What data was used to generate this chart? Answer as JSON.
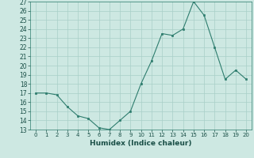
{
  "x": [
    0,
    1,
    2,
    3,
    4,
    5,
    6,
    7,
    8,
    9,
    10,
    11,
    12,
    13,
    14,
    15,
    16,
    17,
    18,
    19,
    20
  ],
  "y": [
    17.0,
    17.0,
    16.8,
    15.5,
    14.5,
    14.2,
    13.2,
    13.0,
    14.0,
    15.0,
    18.0,
    20.5,
    23.5,
    23.3,
    24.0,
    27.0,
    25.5,
    22.0,
    18.5,
    19.5,
    18.5
  ],
  "xlabel": "Humidex (Indice chaleur)",
  "ylim": [
    13,
    27
  ],
  "xlim": [
    -0.5,
    20.5
  ],
  "yticks": [
    13,
    14,
    15,
    16,
    17,
    18,
    19,
    20,
    21,
    22,
    23,
    24,
    25,
    26,
    27
  ],
  "xticks": [
    0,
    1,
    2,
    3,
    4,
    5,
    6,
    7,
    8,
    9,
    10,
    11,
    12,
    13,
    14,
    15,
    16,
    17,
    18,
    19,
    20
  ],
  "line_color": "#2e7d6e",
  "marker_color": "#2e7d6e",
  "bg_color": "#cde8e2",
  "grid_color": "#a8cfc8",
  "spine_color": "#2e7d6e",
  "label_color": "#1a4f47"
}
